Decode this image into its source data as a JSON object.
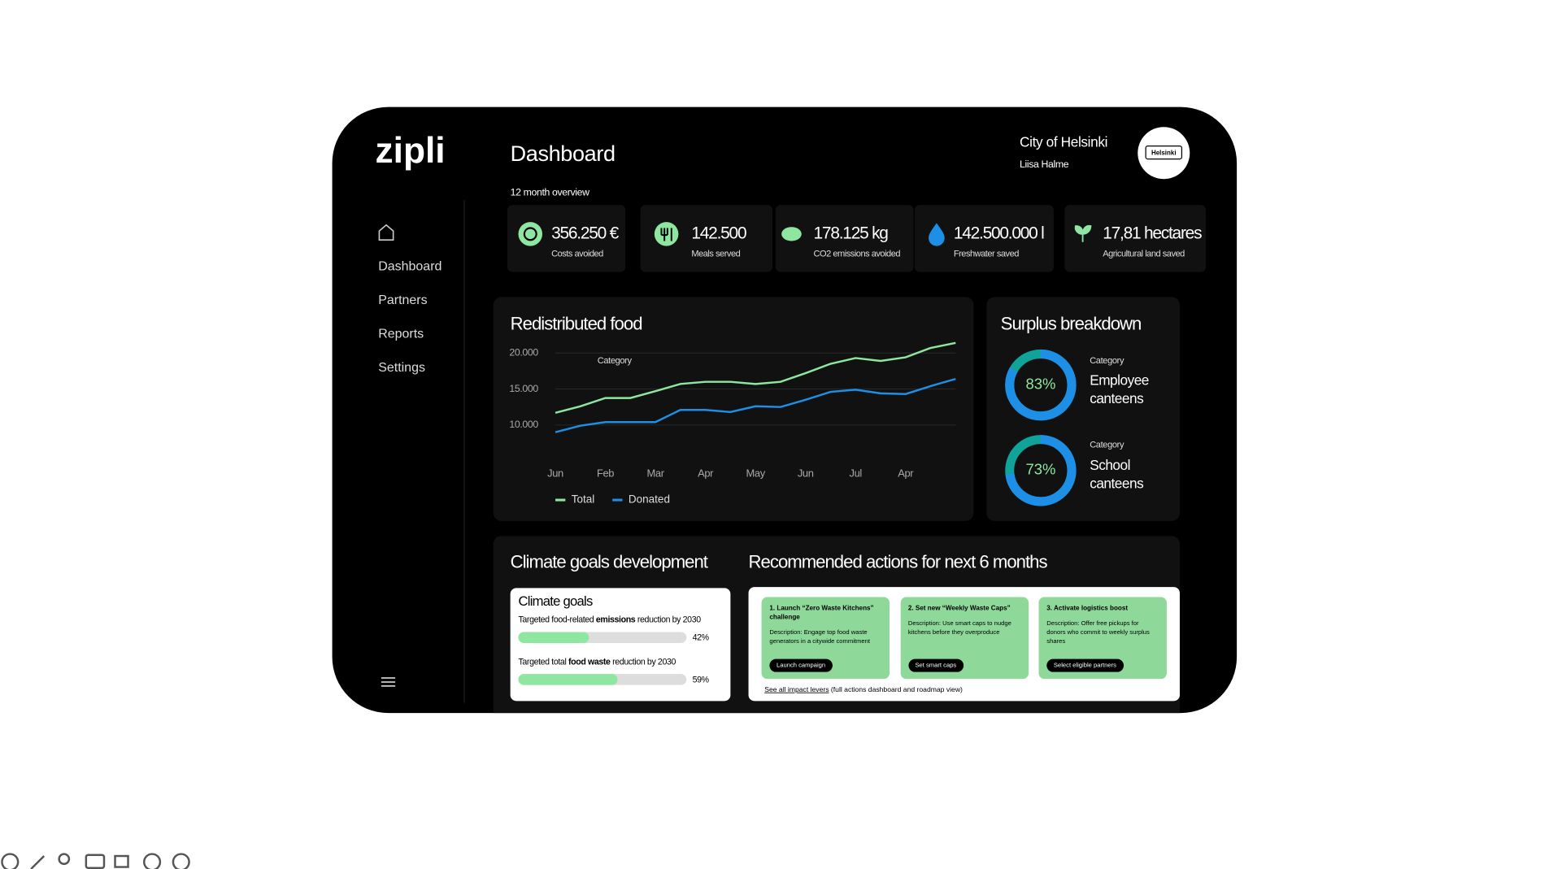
{
  "brand": "zipli",
  "header": {
    "title": "Dashboard",
    "subtitle": "12 month overview",
    "org": "City of Helsinki",
    "user": "Liisa Halme",
    "logo": "Helsinki"
  },
  "nav": [
    "Dashboard",
    "Partners",
    "Reports",
    "Settings"
  ],
  "kpis": [
    {
      "value": "356.250 €",
      "label": "Costs avoided"
    },
    {
      "value": "142.500",
      "label": "Meals served"
    },
    {
      "value": "178.125 kg",
      "label": "CO2 emissions avoided"
    },
    {
      "value": "142.500.000 l",
      "label": "Freshwater saved"
    },
    {
      "value": "17,81 hectares",
      "label": "Agricultural land saved"
    }
  ],
  "chart_data": {
    "type": "line",
    "title": "Redistributed food",
    "annotation": "Category",
    "categories": [
      "Jun",
      null,
      "Feb",
      null,
      "Mar",
      null,
      "Apr",
      null,
      "May",
      null,
      "Jun",
      null,
      "Jul",
      null,
      "Apr",
      null,
      null
    ],
    "series": [
      {
        "name": "Total",
        "color": "#8ee6a0",
        "values": [
          11700,
          12600,
          13750,
          13750,
          14700,
          15700,
          16000,
          16000,
          15700,
          16000,
          17200,
          18500,
          19300,
          18900,
          19400,
          20700,
          21400
        ]
      },
      {
        "name": "Donated",
        "color": "#1e8fe6",
        "values": [
          9000,
          9900,
          10400,
          10400,
          10400,
          12100,
          12100,
          11800,
          12600,
          12500,
          13500,
          14600,
          14900,
          14400,
          14300,
          15400,
          16400
        ]
      }
    ],
    "ylim": [
      6000,
      22000
    ],
    "yticks": [
      {
        "value": 20000,
        "label": "20.000"
      },
      {
        "value": 15000,
        "label": "15.000"
      },
      {
        "value": 10000,
        "label": "10.000"
      }
    ],
    "grid": true
  },
  "surplus_breakdown": {
    "title": "Surplus breakdown",
    "items": [
      {
        "caption": "Category",
        "name": "Employee canteens",
        "value": 83,
        "value_label": "83%"
      },
      {
        "caption": "Category",
        "name": "School canteens",
        "value": 73,
        "value_label": "73%"
      }
    ],
    "color": "#1e8fe6",
    "rest_color": "#10a39a"
  },
  "climate": {
    "title": "Climate goals development",
    "card_title": "Climate goals",
    "goals": [
      {
        "text": [
          "Targeted food-related ",
          "emissions",
          " reduction by 2030"
        ],
        "value": 42,
        "value_label": "42%"
      },
      {
        "text": [
          "Targeted total ",
          "food waste",
          " reduction by 2030"
        ],
        "value": 59,
        "value_label": "59%"
      }
    ]
  },
  "actions": {
    "title": "Recommended actions for next 6 months",
    "cards": [
      {
        "title": "1. Launch “Zero Waste Kitchens” challenge",
        "description": "Description: Engage top food waste generators in a citywide commitment",
        "button": "Launch campaign"
      },
      {
        "title": "2. Set new “Weekly Waste Caps”",
        "description": "Description: Use smart caps to nudge kitchens before they overproduce",
        "button": "Set smart caps"
      },
      {
        "title": "3. Activate logistics boost",
        "description": "Description: Offer free pickups for donors who commit to weekly surplus shares",
        "button": "Select eligible partners"
      }
    ],
    "link": "See all impact levers",
    "link_note": " (full actions dashboard and roadmap view)"
  }
}
